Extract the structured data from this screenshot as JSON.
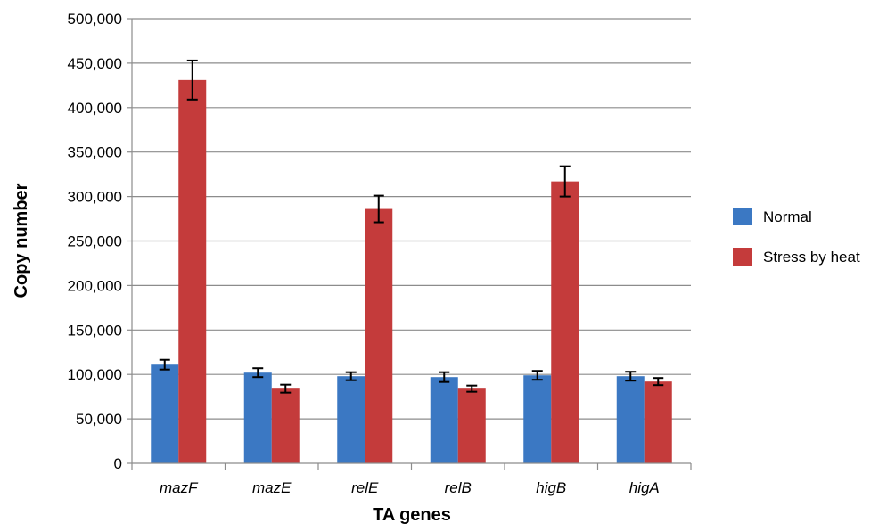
{
  "chart_data": {
    "type": "bar",
    "title": "",
    "xlabel": "TA genes",
    "ylabel": "Copy number",
    "categories": [
      "mazF",
      "mazE",
      "relE",
      "relB",
      "higB",
      "higA"
    ],
    "series": [
      {
        "name": "Normal",
        "color": "#3b78c3",
        "values": [
          111000,
          102000,
          98000,
          97000,
          99000,
          98000
        ],
        "errors": [
          5500,
          5000,
          4500,
          5500,
          5000,
          5000
        ]
      },
      {
        "name": "Stress by heat",
        "color": "#c43b3b",
        "values": [
          431000,
          84000,
          286000,
          84000,
          317000,
          92000
        ],
        "errors": [
          22000,
          4500,
          15000,
          3500,
          17000,
          4000
        ]
      }
    ],
    "ylim": [
      0,
      500000
    ],
    "yticks": [
      0,
      50000,
      100000,
      150000,
      200000,
      250000,
      300000,
      350000,
      400000,
      450000,
      500000
    ],
    "ytick_labels": [
      "0",
      "50,000",
      "100,000",
      "150,000",
      "200,000",
      "250,000",
      "300,000",
      "350,000",
      "400,000",
      "450,000",
      "500,000"
    ],
    "grid": true,
    "legend": "right"
  }
}
